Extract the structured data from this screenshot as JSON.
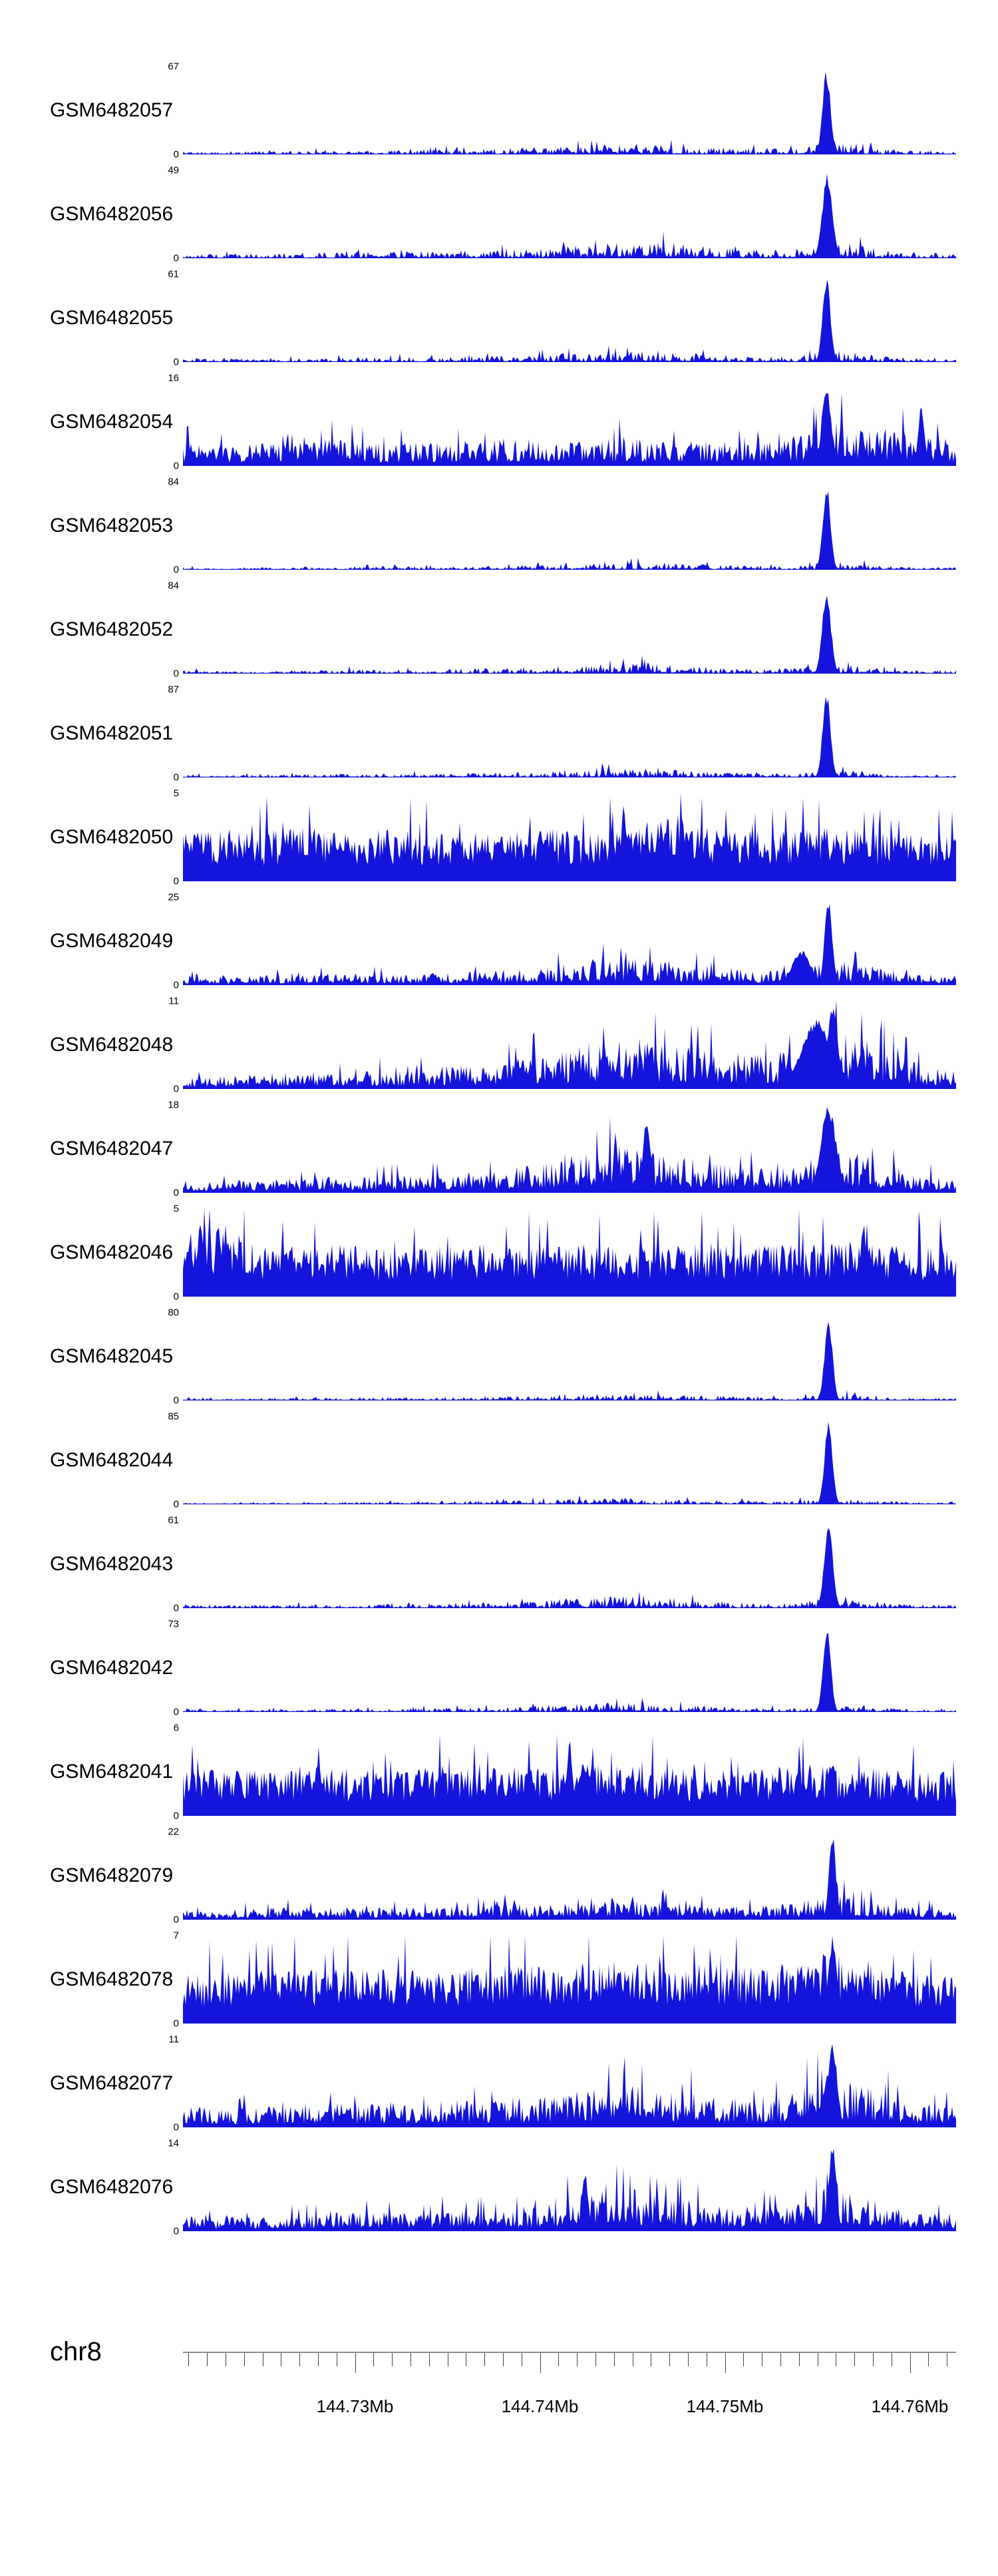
{
  "chart_data": {
    "type": "area",
    "description": "Genome browser read-coverage tracks over chr8 region 144.72-144.76 Mb; most IP tracks show a sharp peak near 144.755 Mb, control/input tracks show uniform noise",
    "track_color": "#1414DC",
    "y_zero_label": "0",
    "peak_center_mb": 144.7555,
    "x_axis": {
      "chromosome": "chr8",
      "x_min_mb": 144.7207,
      "x_max_mb": 144.7625,
      "minor_tick_step_mb": 0.001,
      "major_ticks": [
        {
          "value_mb": 144.73,
          "label": "144.73Mb"
        },
        {
          "value_mb": 144.74,
          "label": "144.74Mb"
        },
        {
          "value_mb": 144.75,
          "label": "144.75Mb"
        },
        {
          "value_mb": 144.76,
          "label": "144.76Mb"
        }
      ]
    },
    "tracks": [
      {
        "label": "GSM6482057",
        "ymax": 67,
        "texture": "sparse",
        "baseline_pct": [
          4,
          3,
          4,
          4,
          5,
          5,
          6,
          6,
          8,
          9,
          11,
          13,
          10,
          8,
          7,
          8,
          14,
          8,
          5,
          4
        ],
        "peaks": [
          {
            "center": 0.8325,
            "width": 0.005,
            "height": 100
          }
        ]
      },
      {
        "label": "GSM6482056",
        "ymax": 49,
        "texture": "sparse",
        "baseline_pct": [
          6,
          5,
          6,
          7,
          7,
          8,
          8,
          9,
          10,
          12,
          16,
          20,
          18,
          14,
          10,
          10,
          22,
          12,
          7,
          6
        ],
        "peaks": [
          {
            "center": 0.8335,
            "width": 0.0065,
            "height": 100
          }
        ]
      },
      {
        "label": "GSM6482055",
        "ymax": 61,
        "texture": "sparse",
        "baseline_pct": [
          4,
          4,
          4,
          5,
          5,
          6,
          6,
          7,
          8,
          9,
          12,
          14,
          11,
          9,
          7,
          7,
          15,
          8,
          5,
          4
        ],
        "peaks": [
          {
            "center": 0.8325,
            "width": 0.005,
            "height": 100
          }
        ]
      },
      {
        "label": "GSM6482054",
        "ymax": 16,
        "texture": "medium",
        "baseline_pct": [
          30,
          25,
          28,
          35,
          30,
          25,
          28,
          30,
          32,
          30,
          28,
          35,
          30,
          28,
          30,
          35,
          55,
          45,
          40,
          35
        ],
        "peaks": [
          {
            "center": 0.8325,
            "width": 0.006,
            "height": 95
          },
          {
            "center": 0.955,
            "width": 0.004,
            "height": 70
          }
        ]
      },
      {
        "label": "GSM6482053",
        "ymax": 84,
        "texture": "sparse",
        "baseline_pct": [
          3,
          2,
          3,
          3,
          3,
          4,
          4,
          4,
          5,
          6,
          8,
          9,
          8,
          6,
          5,
          5,
          10,
          6,
          3,
          3
        ],
        "peaks": [
          {
            "center": 0.8325,
            "width": 0.005,
            "height": 100
          }
        ]
      },
      {
        "label": "GSM6482052",
        "ymax": 84,
        "texture": "sparse",
        "baseline_pct": [
          4,
          3,
          4,
          4,
          5,
          5,
          5,
          6,
          7,
          8,
          11,
          14,
          11,
          8,
          6,
          6,
          12,
          7,
          4,
          4
        ],
        "peaks": [
          {
            "center": 0.8325,
            "width": 0.0055,
            "height": 100
          }
        ]
      },
      {
        "label": "GSM6482051",
        "ymax": 87,
        "texture": "sparse",
        "baseline_pct": [
          3,
          3,
          3,
          4,
          4,
          4,
          5,
          5,
          6,
          7,
          9,
          11,
          9,
          7,
          5,
          5,
          10,
          6,
          3,
          3
        ],
        "peaks": [
          {
            "center": 0.8325,
            "width": 0.005,
            "height": 100
          }
        ]
      },
      {
        "label": "GSM6482050",
        "ymax": 5,
        "texture": "dense",
        "baseline_pct": [
          55,
          60,
          58,
          62,
          55,
          60,
          58,
          55,
          60,
          62,
          58,
          60,
          80,
          60,
          58,
          60,
          62,
          58,
          55,
          52
        ],
        "peaks": [
          {
            "center": 0.57,
            "width": 0.003,
            "height": 95
          }
        ]
      },
      {
        "label": "GSM6482049",
        "ymax": 25,
        "texture": "medium",
        "baseline_pct": [
          10,
          10,
          12,
          12,
          14,
          12,
          14,
          16,
          18,
          22,
          30,
          32,
          28,
          22,
          18,
          16,
          30,
          22,
          14,
          12
        ],
        "peaks": [
          {
            "center": 0.835,
            "width": 0.005,
            "height": 100
          },
          {
            "center": 0.8,
            "width": 0.012,
            "height": 40
          }
        ]
      },
      {
        "label": "GSM6482048",
        "ymax": 11,
        "texture": "medium",
        "baseline_pct": [
          15,
          15,
          18,
          20,
          20,
          22,
          25,
          28,
          35,
          40,
          55,
          60,
          50,
          45,
          40,
          45,
          75,
          55,
          30,
          20
        ],
        "peaks": [
          {
            "center": 0.82,
            "width": 0.02,
            "height": 80
          },
          {
            "center": 0.84,
            "width": 0.007,
            "height": 100
          }
        ]
      },
      {
        "label": "GSM6482047",
        "ymax": 18,
        "texture": "medium",
        "baseline_pct": [
          15,
          14,
          16,
          18,
          18,
          20,
          22,
          25,
          28,
          35,
          50,
          55,
          45,
          35,
          30,
          30,
          55,
          40,
          22,
          18
        ],
        "peaks": [
          {
            "center": 0.6,
            "width": 0.005,
            "height": 85
          },
          {
            "center": 0.835,
            "width": 0.01,
            "height": 100
          }
        ]
      },
      {
        "label": "GSM6482046",
        "ymax": 5,
        "texture": "dense",
        "baseline_pct": [
          60,
          85,
          60,
          58,
          60,
          55,
          58,
          60,
          62,
          58,
          60,
          58,
          60,
          62,
          58,
          60,
          65,
          60,
          58,
          55
        ],
        "peaks": [
          {
            "center": 0.022,
            "width": 0.003,
            "height": 100
          },
          {
            "center": 0.88,
            "width": 0.004,
            "height": 85
          }
        ]
      },
      {
        "label": "GSM6482045",
        "ymax": 80,
        "texture": "sparse",
        "baseline_pct": [
          3,
          2,
          3,
          3,
          3,
          4,
          4,
          4,
          5,
          6,
          7,
          8,
          7,
          6,
          5,
          4,
          8,
          5,
          3,
          3
        ],
        "peaks": [
          {
            "center": 0.835,
            "width": 0.005,
            "height": 100
          }
        ]
      },
      {
        "label": "GSM6482044",
        "ymax": 85,
        "texture": "sparse",
        "baseline_pct": [
          2,
          2,
          3,
          3,
          3,
          3,
          4,
          4,
          5,
          5,
          7,
          8,
          6,
          5,
          4,
          4,
          8,
          5,
          3,
          2
        ],
        "peaks": [
          {
            "center": 0.835,
            "width": 0.005,
            "height": 100
          }
        ]
      },
      {
        "label": "GSM6482043",
        "ymax": 61,
        "texture": "sparse",
        "baseline_pct": [
          4,
          4,
          4,
          5,
          5,
          6,
          6,
          7,
          8,
          10,
          14,
          16,
          12,
          9,
          7,
          7,
          13,
          8,
          5,
          4
        ],
        "peaks": [
          {
            "center": 0.835,
            "width": 0.0055,
            "height": 100
          }
        ]
      },
      {
        "label": "GSM6482042",
        "ymax": 73,
        "texture": "sparse",
        "baseline_pct": [
          3,
          3,
          3,
          4,
          4,
          4,
          5,
          5,
          6,
          8,
          10,
          12,
          9,
          7,
          6,
          5,
          10,
          6,
          4,
          3
        ],
        "peaks": [
          {
            "center": 0.833,
            "width": 0.005,
            "height": 100
          }
        ]
      },
      {
        "label": "GSM6482041",
        "ymax": 6,
        "texture": "dense",
        "baseline_pct": [
          50,
          55,
          52,
          58,
          55,
          50,
          55,
          60,
          58,
          55,
          60,
          58,
          55,
          52,
          55,
          58,
          60,
          55,
          52,
          50
        ],
        "peaks": [
          {
            "center": 0.5,
            "width": 0.003,
            "height": 95
          }
        ]
      },
      {
        "label": "GSM6482079",
        "ymax": 22,
        "texture": "medium",
        "baseline_pct": [
          12,
          12,
          14,
          14,
          15,
          14,
          16,
          16,
          18,
          18,
          20,
          22,
          20,
          18,
          16,
          18,
          32,
          20,
          14,
          12
        ],
        "peaks": [
          {
            "center": 0.84,
            "width": 0.0045,
            "height": 100
          }
        ]
      },
      {
        "label": "GSM6482078",
        "ymax": 7,
        "texture": "dense",
        "baseline_pct": [
          55,
          60,
          65,
          60,
          70,
          65,
          60,
          65,
          70,
          65,
          70,
          75,
          65,
          70,
          65,
          70,
          85,
          70,
          60,
          55
        ],
        "peaks": [
          {
            "center": 0.84,
            "width": 0.006,
            "height": 100
          }
        ]
      },
      {
        "label": "GSM6482077",
        "ymax": 11,
        "texture": "medium",
        "baseline_pct": [
          25,
          22,
          25,
          28,
          28,
          30,
          30,
          32,
          35,
          38,
          45,
          48,
          42,
          38,
          35,
          40,
          65,
          45,
          30,
          25
        ],
        "peaks": [
          {
            "center": 0.84,
            "width": 0.006,
            "height": 100
          }
        ]
      },
      {
        "label": "GSM6482076",
        "ymax": 14,
        "texture": "medium",
        "baseline_pct": [
          18,
          16,
          18,
          20,
          22,
          22,
          25,
          25,
          28,
          32,
          45,
          50,
          40,
          32,
          28,
          30,
          55,
          35,
          22,
          20
        ],
        "peaks": [
          {
            "center": 0.84,
            "width": 0.005,
            "height": 100
          },
          {
            "center": 0.52,
            "width": 0.004,
            "height": 70
          }
        ]
      }
    ]
  }
}
